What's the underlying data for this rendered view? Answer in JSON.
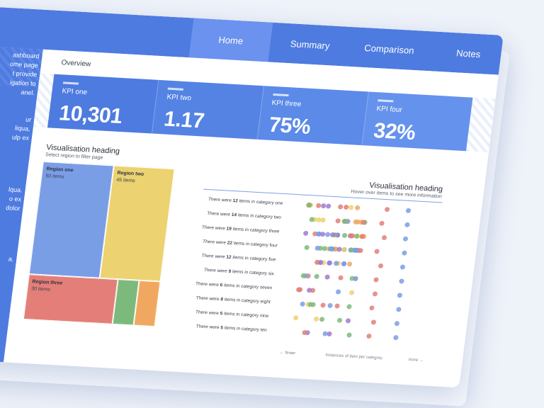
{
  "header": {
    "brand": "ard",
    "tabs": [
      {
        "label": "Home",
        "active": true
      },
      {
        "label": "Summary",
        "active": false
      },
      {
        "label": "Comparison",
        "active": false
      },
      {
        "label": "Notes",
        "active": false
      }
    ]
  },
  "sidebar": {
    "para1": "ashboard\nome page\nt provide\nigation to\nanel.",
    "para2": "ur\nliqua,\nulp ex",
    "para3": "lqua.\no ex\ndolor",
    "para4": "a."
  },
  "overview": {
    "title": "Overview",
    "kpis": [
      {
        "label": "KPI one",
        "value": "10,301"
      },
      {
        "label": "KPI two",
        "value": "1.17"
      },
      {
        "label": "KPI three",
        "value": "75%"
      },
      {
        "label": "KPI four",
        "value": "32%"
      }
    ]
  },
  "visual1": {
    "heading": "Visualisation heading",
    "subheading": "Select region to filter page",
    "regions": [
      {
        "name": "Region one",
        "count": "50 items",
        "value": 50
      },
      {
        "name": "Region two",
        "count": "45 items",
        "value": 45
      },
      {
        "name": "Region three",
        "count": "30 items",
        "value": 30
      }
    ]
  },
  "visual2": {
    "heading": "Visualisation heading",
    "subheading": "Hover over items to see more information",
    "rows": [
      {
        "pre": "There were ",
        "num": "12",
        "post": " items in category one"
      },
      {
        "pre": "There were ",
        "num": "14",
        "post": " items in category two"
      },
      {
        "pre": "There were ",
        "num": "19",
        "post": " items in category three"
      },
      {
        "pre": "There were ",
        "num": "22",
        "post": " items in category four"
      },
      {
        "pre": "There were ",
        "num": "12",
        "post": " items in category five"
      },
      {
        "pre": "There were ",
        "num": "9",
        "post": " items in category six"
      },
      {
        "pre": "There were ",
        "num": "6",
        "post": " items in category seven"
      },
      {
        "pre": "There were ",
        "num": "8",
        "post": " items in category eight"
      },
      {
        "pre": "There were ",
        "num": "5",
        "post": " items in category nine"
      },
      {
        "pre": "There were ",
        "num": "5",
        "post": " items in category ten"
      }
    ],
    "axis_left": "← fewer",
    "axis_center": "Instances of item per category",
    "axis_right": "more →"
  },
  "colors": {
    "accent": "#4e7be0",
    "region_one": "#7a9ee6",
    "region_two": "#ecd270",
    "region_three": "#e37f78",
    "green": "#7cba7c",
    "orange": "#f0a860",
    "dot_palette": [
      "#7a9ee6",
      "#ecd270",
      "#e37f78",
      "#7cba7c",
      "#a07ad0",
      "#f0a860"
    ]
  }
}
